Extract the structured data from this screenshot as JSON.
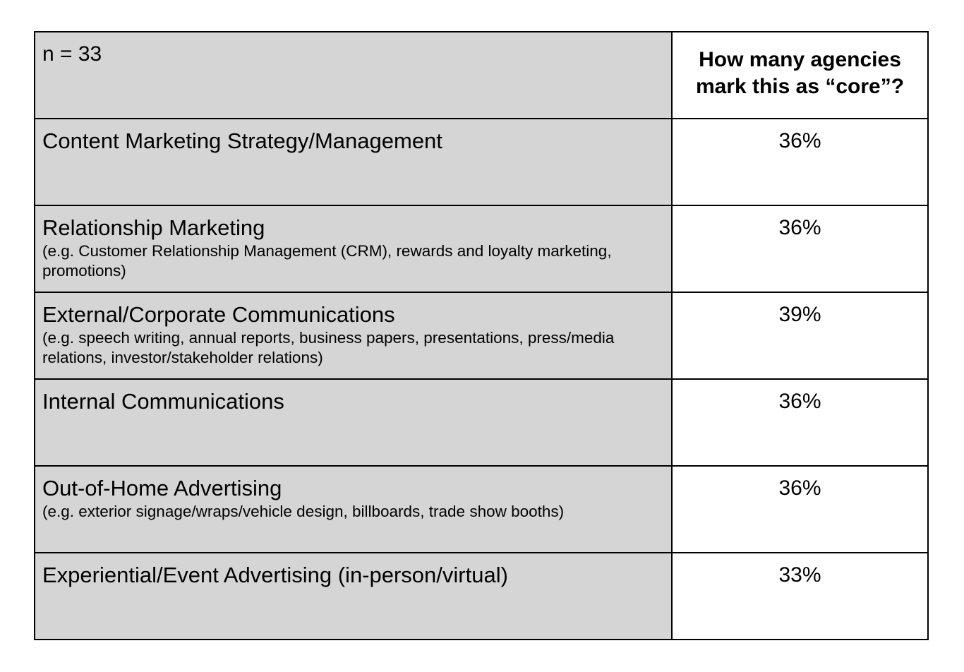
{
  "header": {
    "n_label": "n = 33",
    "value_column": "How many agencies mark this as “core”?"
  },
  "rows": [
    {
      "title": "Content Marketing Strategy/Management",
      "note": "",
      "value": "36%"
    },
    {
      "title": "Relationship Marketing",
      "note": "(e.g. Customer Relationship Management (CRM), rewards and loyalty marketing, promotions)",
      "value": "36%"
    },
    {
      "title": "External/Corporate Communications",
      "note": "(e.g. speech writing, annual reports, business papers, presentations, press/media relations, investor/stakeholder relations)",
      "value": "39%"
    },
    {
      "title": "Internal Communications",
      "note": "",
      "value": "36%"
    },
    {
      "title": "Out-of-Home Advertising",
      "note": "(e.g. exterior signage/wraps/vehicle design, billboards, trade show booths)",
      "value": "36%"
    },
    {
      "title": "Experiential/Event Advertising (in-person/virtual)",
      "note": "",
      "value": "33%"
    }
  ]
}
